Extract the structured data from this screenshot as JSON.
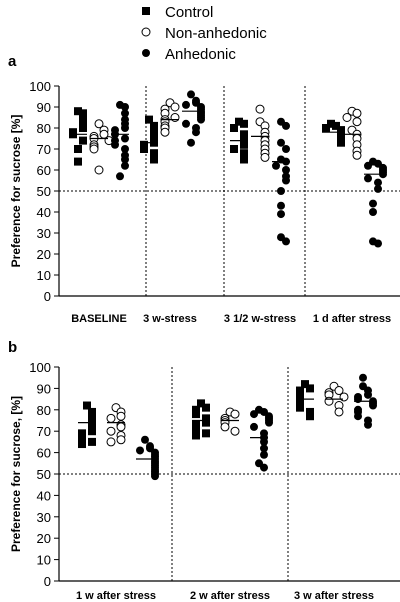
{
  "legend": {
    "position": "top-center",
    "items": [
      {
        "label": "Control",
        "marker": "square-filled"
      },
      {
        "label": "Non-anhedonic",
        "marker": "circle-open"
      },
      {
        "label": "Anhedonic",
        "marker": "circle-filled"
      }
    ]
  },
  "colors": {
    "marker": "#000000",
    "open_fill": "#ffffff",
    "background": "#ffffff"
  },
  "chart_data": [
    {
      "panel": "a",
      "type": "scatter",
      "ylabel": "Preference for sucrose [%]",
      "xlabel": "",
      "ylim": [
        0,
        100
      ],
      "yticks": [
        0,
        10,
        20,
        30,
        40,
        50,
        60,
        70,
        80,
        90,
        100
      ],
      "reference_line": 50,
      "groups": [
        "BASELINE",
        "3 w-stress",
        "3 1/2 w-stress",
        "1 d after stress"
      ],
      "series": [
        {
          "name": "Control",
          "marker": "square-filled",
          "values": [
            [
              88,
              87,
              84,
              81,
              80,
              78,
              77,
              74,
              70,
              64
            ],
            [
              84,
              81,
              79,
              77,
              75,
              73,
              72,
              70,
              68,
              65
            ],
            [
              83,
              82,
              80,
              77,
              76,
              73,
              72,
              70,
              68,
              65
            ],
            [
              82,
              81,
              80,
              79,
              78,
              77,
              76,
              75,
              74,
              73
            ]
          ]
        },
        {
          "name": "Non-anhedonic",
          "marker": "circle-open",
          "values": [
            [
              82,
              79,
              77,
              76,
              75,
              74,
              72,
              71,
              70,
              60
            ],
            [
              92,
              90,
              89,
              87,
              85,
              84,
              83,
              81,
              80,
              78
            ],
            [
              89,
              83,
              81,
              78,
              76,
              74,
              72,
              70,
              68,
              66
            ],
            [
              88,
              87,
              85,
              83,
              79,
              77,
              75,
              72,
              69,
              67
            ]
          ]
        },
        {
          "name": "Anhedonic",
          "marker": "circle-filled",
          "values": [
            [
              91,
              90,
              87,
              84,
              82,
              80,
              79,
              77,
              75,
              74,
              72,
              70,
              67,
              65,
              62,
              57
            ],
            [
              96,
              93,
              92,
              91,
              90,
              89,
              88,
              87,
              86,
              85,
              84,
              82,
              80,
              78,
              73
            ],
            [
              83,
              81,
              73,
              70,
              65,
              64,
              62,
              60,
              57,
              55,
              50,
              43,
              39,
              28,
              26
            ],
            [
              64,
              63,
              62,
              61,
              60,
              59,
              58,
              56,
              54,
              51,
              44,
              40,
              26,
              25
            ]
          ]
        }
      ],
      "means": [
        [
          77,
          75,
          77
        ],
        [
          73,
          84,
          88
        ],
        [
          74,
          76,
          64
        ],
        [
          78,
          77,
          58
        ]
      ]
    },
    {
      "panel": "b",
      "type": "scatter",
      "ylabel": "Preference for sucrose, [%]",
      "xlabel": "",
      "ylim": [
        0,
        100
      ],
      "yticks": [
        0,
        10,
        20,
        30,
        40,
        50,
        60,
        70,
        80,
        90,
        100
      ],
      "reference_line": 50,
      "groups": [
        "1 w after stress",
        "2 w after stress",
        "3 w after stress"
      ],
      "series": [
        {
          "name": "Control",
          "values": [
            [
              82,
              79,
              76,
              74,
              72,
              70,
              69,
              67,
              65,
              64
            ],
            [
              83,
              81,
              80,
              78,
              76,
              74,
              73,
              71,
              69,
              68
            ],
            [
              92,
              90,
              89,
              87,
              86,
              84,
              83,
              81,
              79,
              77
            ]
          ]
        },
        {
          "name": "Non-anhedonic",
          "values": [
            [
              81,
              79,
              77,
              76,
              73,
              72,
              70,
              68,
              66,
              65
            ],
            [
              79,
              78,
              76,
              75,
              74,
              72,
              70
            ],
            [
              91,
              89,
              88,
              87,
              86,
              84,
              82,
              79
            ]
          ]
        },
        {
          "name": "Anhedonic",
          "values": [
            [
              66,
              63,
              62,
              61,
              60,
              59,
              58,
              57,
              56,
              55,
              54,
              53,
              52,
              51,
              50,
              49
            ],
            [
              80,
              79,
              78,
              77,
              76,
              75,
              74,
              72,
              69,
              67,
              65,
              62,
              59,
              55,
              53
            ],
            [
              95,
              91,
              89,
              87,
              86,
              85,
              84,
              83,
              82,
              80,
              79,
              77,
              75,
              73
            ]
          ]
        }
      ],
      "means": [
        [
          74,
          74,
          57
        ],
        [
          75,
          75,
          67
        ],
        [
          85,
          85,
          84
        ]
      ]
    }
  ]
}
